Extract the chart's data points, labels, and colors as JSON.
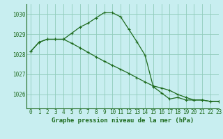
{
  "title": "Graphe pression niveau de la mer (hPa)",
  "background_color": "#c8eef0",
  "grid_color": "#90ccbb",
  "line_color": "#1e6b1e",
  "xlim": [
    -0.5,
    23
  ],
  "ylim": [
    1025.3,
    1030.5
  ],
  "yticks": [
    1026,
    1027,
    1028,
    1029,
    1030
  ],
  "xticks": [
    0,
    1,
    2,
    3,
    4,
    5,
    6,
    7,
    8,
    9,
    10,
    11,
    12,
    13,
    14,
    15,
    16,
    17,
    18,
    19,
    20,
    21,
    22,
    23
  ],
  "series1_x": [
    0,
    1,
    2,
    3,
    4,
    5,
    6,
    7,
    8,
    9,
    10,
    11,
    12,
    13,
    14,
    15,
    16,
    17,
    18,
    19,
    20,
    21,
    22,
    23
  ],
  "series1_y": [
    1028.15,
    1028.6,
    1028.75,
    1028.75,
    1028.75,
    1029.05,
    1029.35,
    1029.55,
    1029.82,
    1030.08,
    1030.07,
    1029.87,
    1029.25,
    1028.62,
    1027.95,
    1026.38,
    1026.08,
    1025.77,
    1025.85,
    1025.72,
    1025.72,
    1025.72,
    1025.65,
    1025.65
  ],
  "series2_x": [
    0,
    1,
    2,
    3,
    4,
    5,
    6,
    7,
    8,
    9,
    10,
    11,
    12,
    13,
    14,
    15,
    16,
    17,
    18,
    19,
    20,
    21,
    22,
    23
  ],
  "series2_y": [
    1028.15,
    1028.6,
    1028.75,
    1028.75,
    1028.75,
    1028.55,
    1028.33,
    1028.1,
    1027.87,
    1027.65,
    1027.45,
    1027.25,
    1027.05,
    1026.83,
    1026.62,
    1026.42,
    1026.32,
    1026.2,
    1026.0,
    1025.85,
    1025.72,
    1025.72,
    1025.65,
    1025.65
  ],
  "tick_fontsize": 5.5,
  "label_fontsize": 6.5
}
